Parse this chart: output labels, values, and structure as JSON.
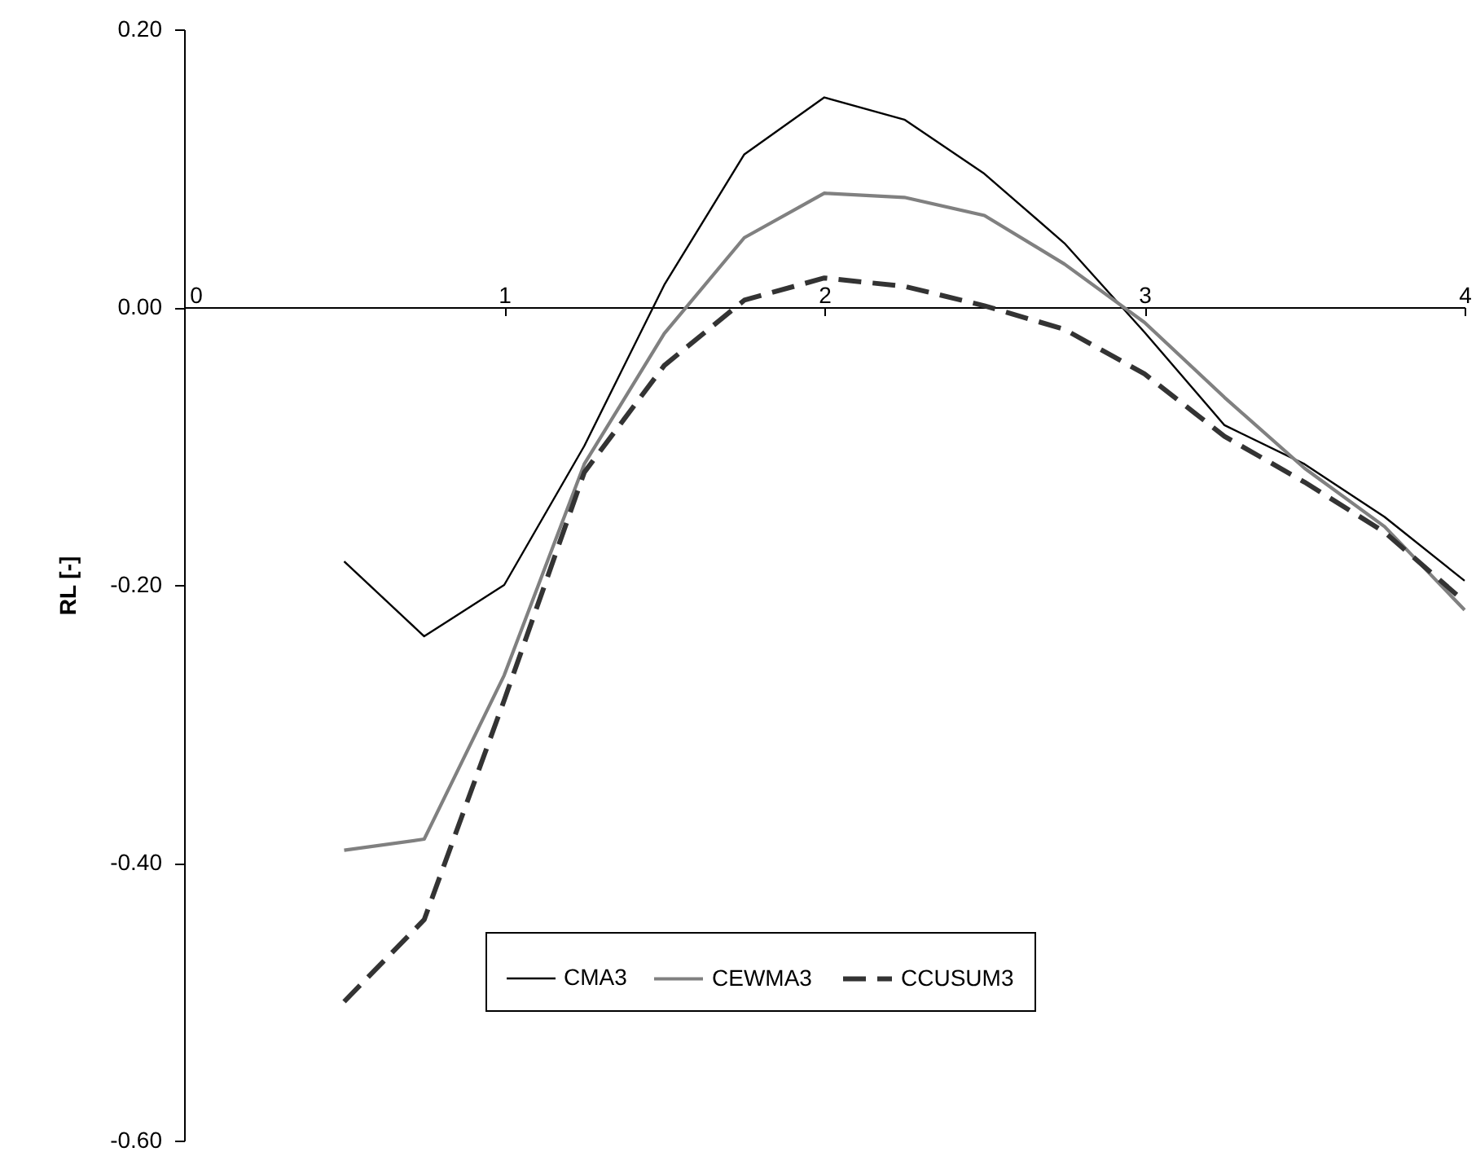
{
  "chart_data": {
    "type": "line",
    "ylabel": "RL [-]",
    "x": [
      0.5,
      0.75,
      1,
      1.25,
      1.5,
      1.75,
      2,
      2.25,
      2.5,
      2.75,
      3,
      3.25,
      3.5,
      3.75,
      4
    ],
    "series": [
      {
        "name": "CMA3",
        "color": "#000000",
        "line_style": "solid",
        "values": [
          -0.183,
          -0.237,
          -0.2,
          -0.1,
          0.016,
          0.11,
          0.151,
          0.135,
          0.096,
          0.046,
          -0.018,
          -0.085,
          -0.113,
          -0.151,
          -0.197
        ]
      },
      {
        "name": "CEWMA3",
        "color": "#808080",
        "line_style": "solid",
        "values": [
          -0.391,
          -0.383,
          -0.265,
          -0.113,
          -0.019,
          0.05,
          0.082,
          0.079,
          0.066,
          0.031,
          -0.011,
          -0.065,
          -0.116,
          -0.158,
          -0.218
        ]
      },
      {
        "name": "CCUSUM3",
        "color": "#333333",
        "line_style": "dashed",
        "values": [
          -0.5,
          -0.441,
          -0.283,
          -0.119,
          -0.042,
          0.005,
          0.021,
          0.015,
          0.001,
          -0.016,
          -0.048,
          -0.093,
          -0.126,
          -0.162,
          -0.212
        ]
      }
    ],
    "xlim": [
      0,
      4
    ],
    "xticks": [
      0,
      1,
      2,
      3,
      4
    ],
    "ylim": [
      -0.6,
      0.2
    ],
    "yticks": [
      {
        "value": -0.6,
        "label": "-0.60"
      },
      {
        "value": -0.4,
        "label": "-0.40"
      },
      {
        "value": -0.2,
        "label": "-0.20"
      },
      {
        "value": 0,
        "label": "0.00"
      },
      {
        "value": 0.2,
        "label": "0.20"
      }
    ],
    "grid": false,
    "legend": "bottom",
    "marker": "none"
  }
}
